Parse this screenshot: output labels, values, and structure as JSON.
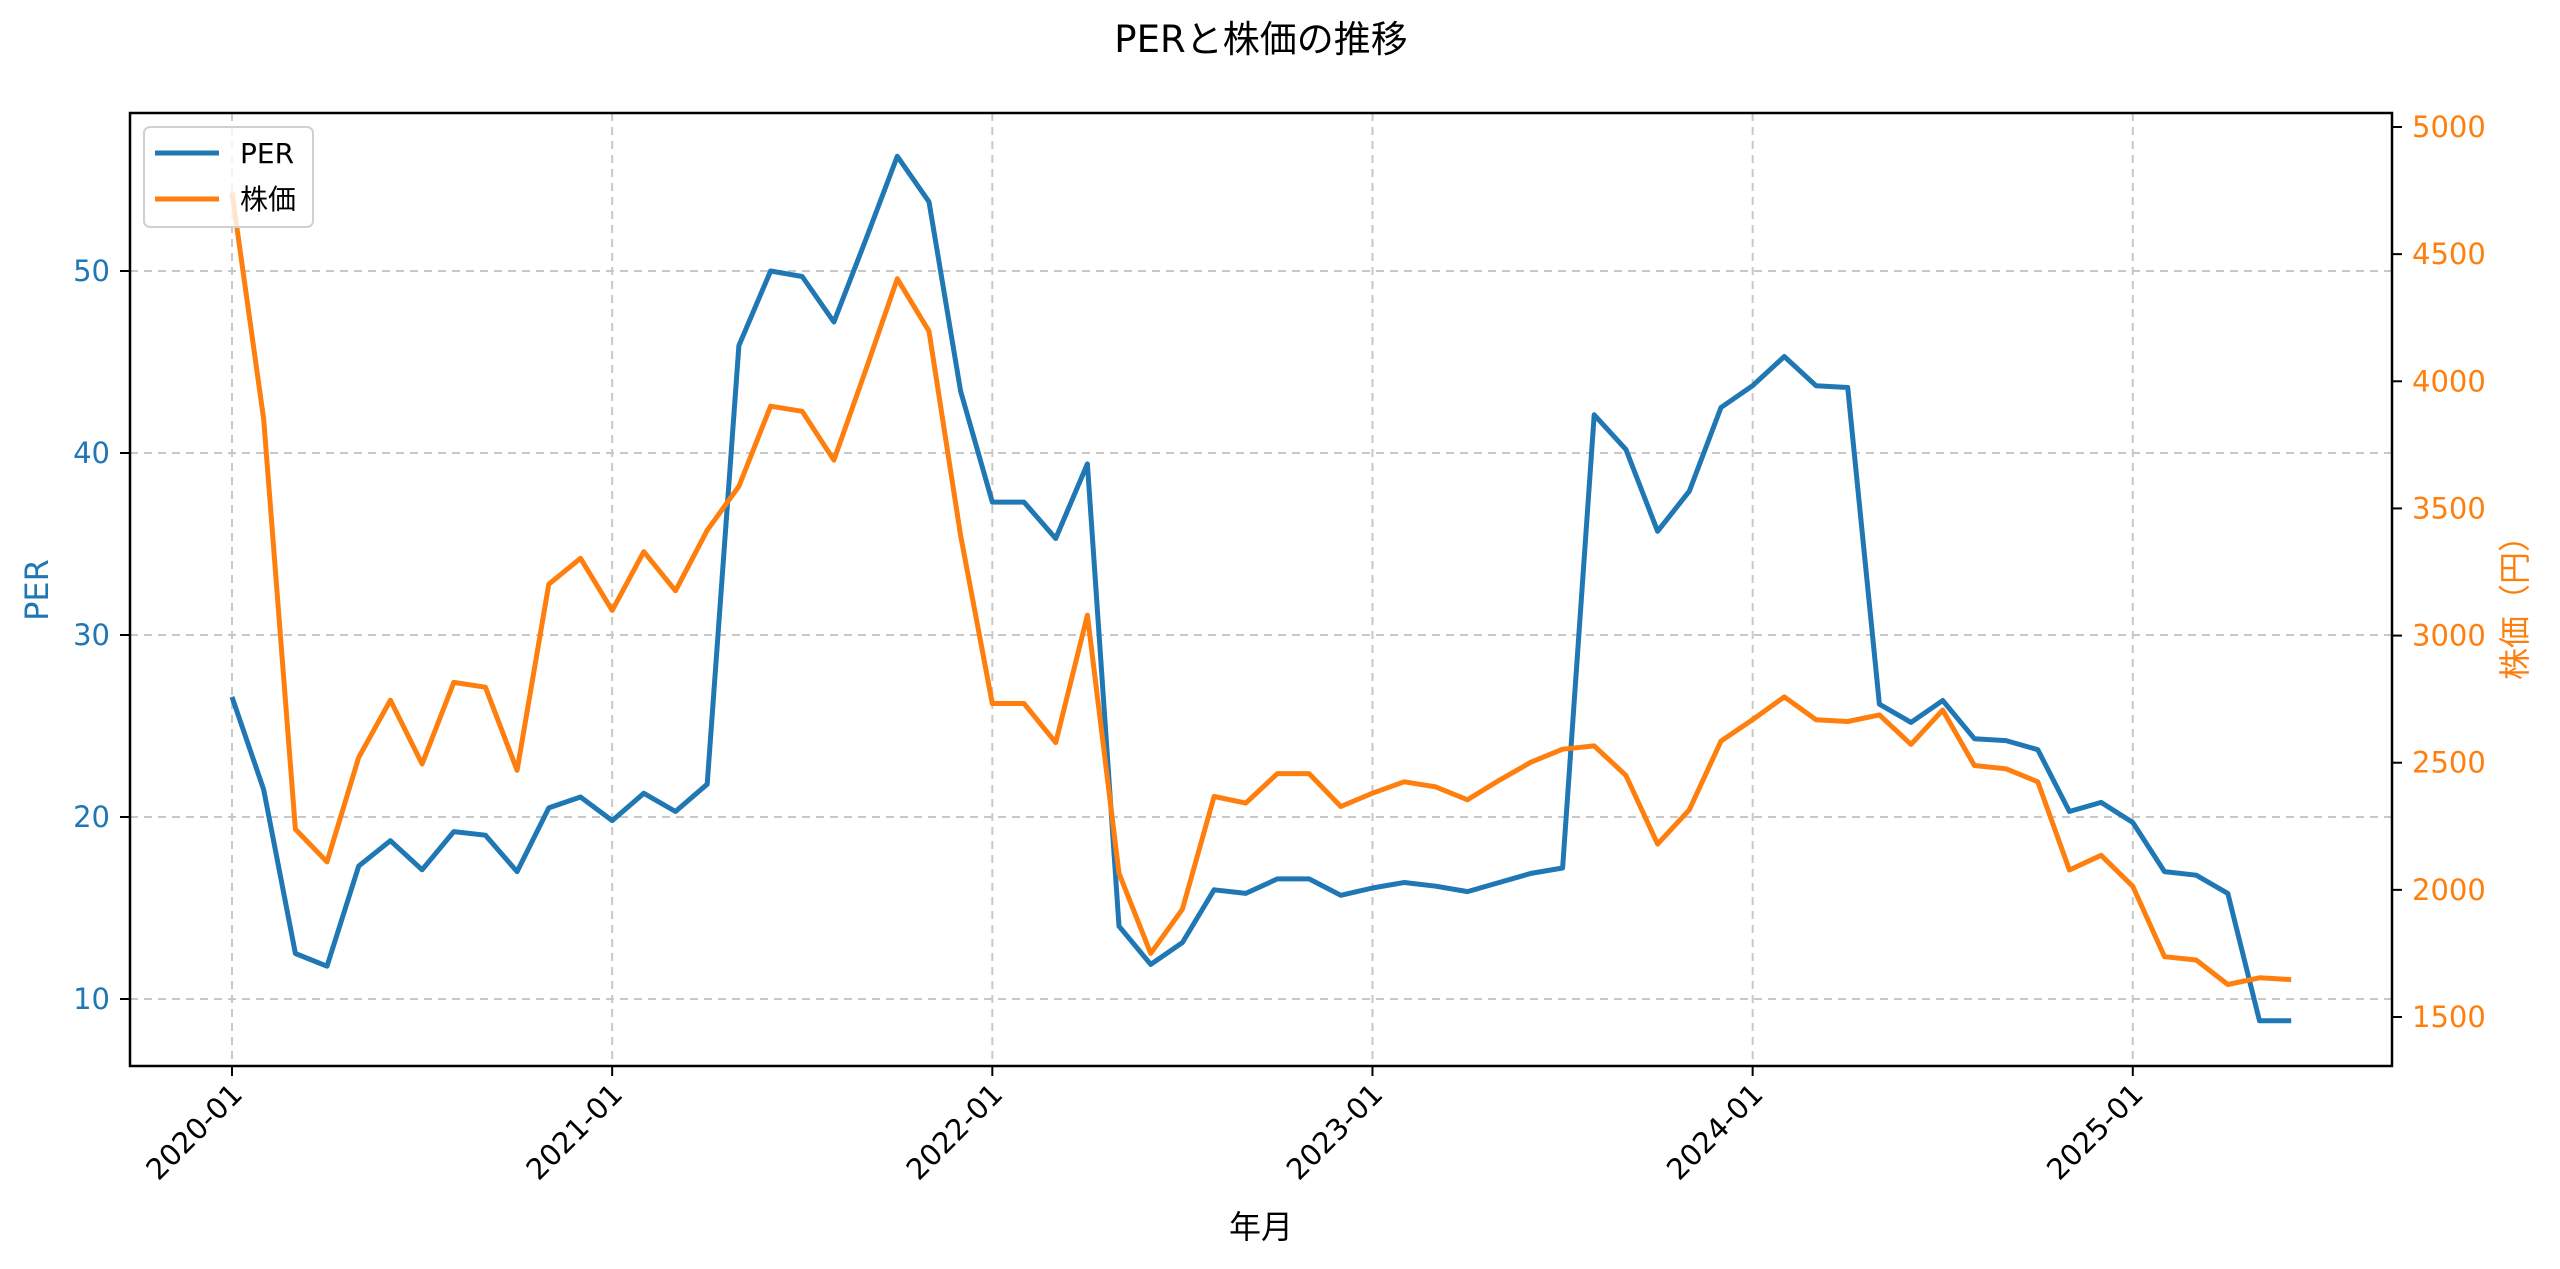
{
  "chart_data": {
    "type": "line",
    "title": "PERと株価の推移",
    "xlabel": "年月",
    "ylabel": "PER",
    "ylabel_right": "株価（円）",
    "x_ticks": [
      "2020-01",
      "2021-01",
      "2022-01",
      "2023-01",
      "2024-01",
      "2025-01"
    ],
    "y_ticks_left": [
      10,
      20,
      30,
      40,
      50
    ],
    "y_ticks_right": [
      1500,
      2000,
      2500,
      3000,
      3500,
      4000,
      4500,
      5000
    ],
    "ylim_left": [
      6.5,
      58.5
    ],
    "ylim_right": [
      1350,
      5060
    ],
    "grid": true,
    "legend_position": "upper left",
    "x": [
      "2020-01",
      "2020-02",
      "2020-03",
      "2020-04",
      "2020-05",
      "2020-06",
      "2020-07",
      "2020-08",
      "2020-09",
      "2020-10",
      "2020-11",
      "2020-12",
      "2021-01",
      "2021-02",
      "2021-03",
      "2021-04",
      "2021-05",
      "2021-06",
      "2021-07",
      "2021-08",
      "2021-09",
      "2021-10",
      "2021-11",
      "2021-12",
      "2022-01",
      "2022-02",
      "2022-03",
      "2022-04",
      "2022-05",
      "2022-06",
      "2022-07",
      "2022-08",
      "2022-09",
      "2022-10",
      "2022-11",
      "2022-12",
      "2023-01",
      "2023-02",
      "2023-03",
      "2023-04",
      "2023-05",
      "2023-06",
      "2023-07",
      "2023-08",
      "2023-09",
      "2023-10",
      "2023-11",
      "2023-12",
      "2024-01",
      "2024-02",
      "2024-03",
      "2024-04",
      "2024-05",
      "2024-06",
      "2024-07",
      "2024-08",
      "2024-09",
      "2024-10",
      "2024-11",
      "2024-12",
      "2025-01",
      "2025-02",
      "2025-03",
      "2025-04",
      "2025-05",
      "2025-06"
    ],
    "series": [
      {
        "name": "PER",
        "axis": "left",
        "color": "#1f77b4",
        "values": [
          26.6,
          21.5,
          12.5,
          11.8,
          17.3,
          18.7,
          17.1,
          19.2,
          19.0,
          17.0,
          20.5,
          21.1,
          19.8,
          21.3,
          20.3,
          21.8,
          45.9,
          50.0,
          49.7,
          47.2,
          51.7,
          56.3,
          53.8,
          43.4,
          37.3,
          37.3,
          35.3,
          39.4,
          14.0,
          11.9,
          13.1,
          16.0,
          15.8,
          16.6,
          16.6,
          15.7,
          16.1,
          16.4,
          16.2,
          15.9,
          16.4,
          16.9,
          17.2,
          42.1,
          40.2,
          35.7,
          37.9,
          42.5,
          43.7,
          45.3,
          43.7,
          43.6,
          26.2,
          25.2,
          26.4,
          24.3,
          24.2,
          23.7,
          20.3,
          20.8,
          19.7,
          17.0,
          16.8,
          15.8,
          8.8,
          8.8
        ]
      },
      {
        "name": "株価",
        "axis": "right",
        "color": "#ff7f0e",
        "values": [
          4743,
          3850,
          2238,
          2110,
          2521,
          2746,
          2495,
          2816,
          2797,
          2470,
          3202,
          3304,
          3099,
          3330,
          3176,
          3414,
          3587,
          3902,
          3882,
          3690,
          4043,
          4403,
          4197,
          3394,
          2733,
          2733,
          2579,
          3080,
          2065,
          1750,
          1924,
          2367,
          2341,
          2457,
          2457,
          2328,
          2380,
          2425,
          2405,
          2354,
          2431,
          2502,
          2553,
          2566,
          2450,
          2180,
          2315,
          2585,
          2669,
          2759,
          2669,
          2662,
          2688,
          2572,
          2707,
          2489,
          2476,
          2425,
          2078,
          2136,
          2014,
          1737,
          1724,
          1628,
          1654,
          1647
        ]
      }
    ]
  }
}
